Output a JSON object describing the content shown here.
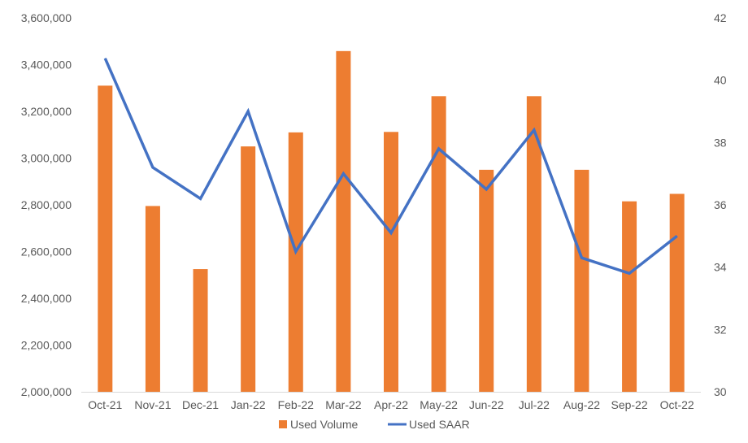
{
  "chart_data": {
    "type": "bar",
    "categories": [
      "Oct-21",
      "Nov-21",
      "Dec-21",
      "Jan-22",
      "Feb-22",
      "Mar-22",
      "Apr-22",
      "May-22",
      "Jun-22",
      "Jul-22",
      "Aug-22",
      "Sep-22",
      "Oct-22"
    ],
    "series": [
      {
        "name": "Used Volume",
        "type": "bar",
        "axis": "left",
        "color": "#ED7D31",
        "values": [
          3310000,
          2795000,
          2525000,
          3050000,
          3110000,
          3458000,
          3112000,
          3265000,
          2950000,
          3265000,
          2950000,
          2815000,
          2847000
        ]
      },
      {
        "name": "Used SAAR",
        "type": "line",
        "axis": "right",
        "color": "#4472C4",
        "values": [
          40.7,
          37.2,
          36.2,
          39.0,
          34.5,
          37.0,
          35.1,
          37.8,
          36.5,
          38.4,
          34.3,
          33.8,
          35.0
        ]
      }
    ],
    "y_left": {
      "ylim": [
        2000000,
        3600000
      ],
      "ticks": [
        "2,000,000",
        "2,200,000",
        "2,400,000",
        "2,600,000",
        "2,800,000",
        "3,000,000",
        "3,200,000",
        "3,400,000",
        "3,600,000"
      ]
    },
    "y_right": {
      "ylim": [
        30,
        42
      ],
      "ticks": [
        "30",
        "32",
        "34",
        "36",
        "38",
        "40",
        "42"
      ]
    },
    "legend": {
      "position": "bottom",
      "items": [
        {
          "label": "Used Volume",
          "color": "#ED7D31",
          "marker": "bar"
        },
        {
          "label": "Used SAAR",
          "color": "#4472C4",
          "marker": "line"
        }
      ]
    },
    "grid": false
  }
}
